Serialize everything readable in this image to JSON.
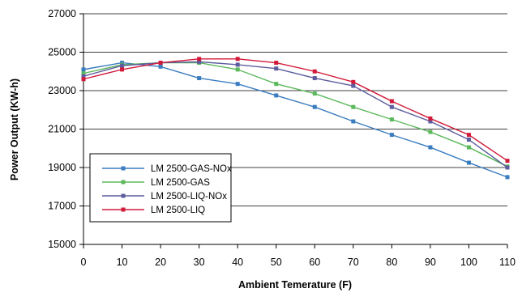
{
  "chart_data": {
    "type": "line",
    "title": "",
    "xlabel": "Ambient Temerature (F)",
    "ylabel": "Power Output (KW-h)",
    "xlim": [
      0,
      110
    ],
    "ylim": [
      15000,
      27000
    ],
    "x": [
      0,
      10,
      20,
      30,
      40,
      50,
      60,
      70,
      80,
      90,
      100,
      110
    ],
    "x_ticks": [
      "0",
      "10",
      "20",
      "30",
      "40",
      "50",
      "60",
      "70",
      "80",
      "90",
      "100",
      "110"
    ],
    "y_ticks": [
      "15000",
      "17000",
      "19000",
      "21000",
      "23000",
      "25000",
      "27000"
    ],
    "grid": "horizontal",
    "legend_position": "bottom-left",
    "series": [
      {
        "name": "LM 2500-GAS-NOx",
        "color": "#3a7cc0",
        "marker": "square",
        "values": [
          24100,
          24450,
          24250,
          23650,
          23350,
          22750,
          22150,
          21400,
          20700,
          20050,
          19250,
          18500
        ]
      },
      {
        "name": "LM 2500-GAS",
        "color": "#5cb85c",
        "marker": "square",
        "values": [
          23900,
          24350,
          24450,
          24450,
          24100,
          23350,
          22850,
          22150,
          21500,
          20850,
          20050,
          19050
        ]
      },
      {
        "name": "LM 2500-LIQ-NOx",
        "color": "#5c5c9e",
        "marker": "square",
        "values": [
          23750,
          24300,
          24450,
          24500,
          24350,
          24150,
          23650,
          23250,
          22150,
          21400,
          20450,
          19000
        ]
      },
      {
        "name": "LM 2500-LIQ",
        "color": "#d11a3a",
        "marker": "square",
        "values": [
          23600,
          24100,
          24450,
          24650,
          24650,
          24450,
          24000,
          23450,
          22450,
          21550,
          20700,
          19350
        ]
      }
    ]
  }
}
